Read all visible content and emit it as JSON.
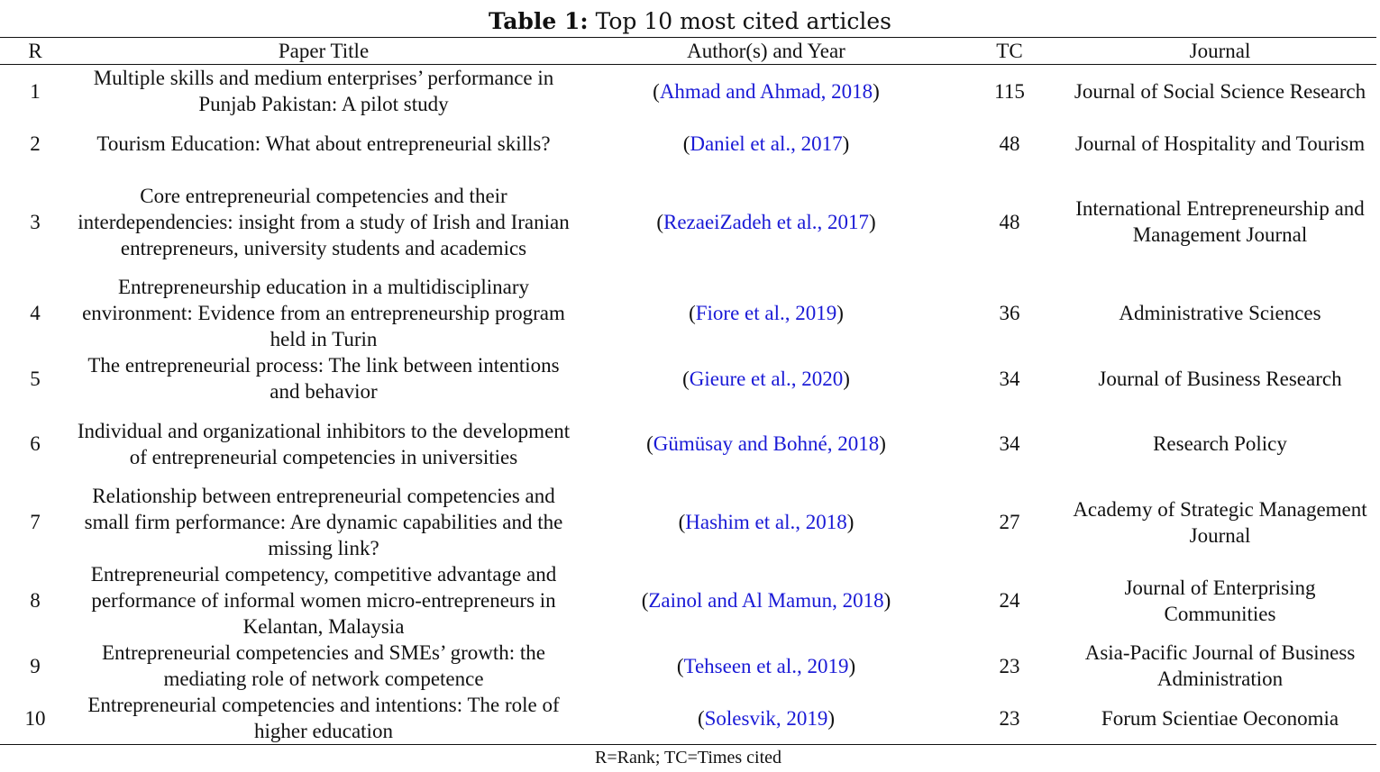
{
  "caption": {
    "label": "Table 1:",
    "text": "Top 10 most cited articles"
  },
  "headers": {
    "rank": "R",
    "title": "Paper Title",
    "authors": "Author(s) and Year",
    "tc": "TC",
    "journal": "Journal"
  },
  "rows": [
    {
      "rank": "1",
      "title": "Multiple skills and medium enterprises’ performance in Punjab Pakistan: A pilot study",
      "authors": "Ahmad and Ahmad, 2018",
      "tc": "115",
      "journal": "Journal of Social Science Research"
    },
    {
      "rank": "2",
      "title": "Tourism Education: What about entrepreneurial skills?",
      "authors": "Daniel et al., 2017",
      "tc": "48",
      "journal": "Journal of Hospitality and Tourism"
    },
    {
      "rank": "3",
      "title": "Core entrepreneurial competencies and their interdependencies: insight from a study of Irish and Iranian entrepreneurs, university students and academics",
      "authors": "RezaeiZadeh et al., 2017",
      "tc": "48",
      "journal": "International Entrepreneurship and Management Journal"
    },
    {
      "rank": "4",
      "title": "Entrepreneurship education in a multidisciplinary environment: Evidence from an entrepreneurship program held in Turin",
      "authors": "Fiore et al., 2019",
      "tc": "36",
      "journal": "Administrative Sciences"
    },
    {
      "rank": "5",
      "title": "The entrepreneurial process: The link between intentions and behavior",
      "authors": "Gieure et al., 2020",
      "tc": "34",
      "journal": "Journal of Business Research"
    },
    {
      "rank": "6",
      "title": "Individual and organizational inhibitors to the development of entrepreneurial competencies in universities",
      "authors": "Gümüsay and Bohné, 2018",
      "tc": "34",
      "journal": "Research Policy"
    },
    {
      "rank": "7",
      "title": "Relationship between entrepreneurial competencies and small firm performance: Are dynamic capabilities and the missing link?",
      "authors": "Hashim et al., 2018",
      "tc": "27",
      "journal": "Academy of Strategic Management Journal"
    },
    {
      "rank": "8",
      "title": "Entrepreneurial competency, competitive advantage and performance of informal women micro-entrepreneurs in Kelantan, Malaysia",
      "authors": "Zainol and Al Mamun, 2018",
      "tc": "24",
      "journal": "Journal of Enterprising Communities"
    },
    {
      "rank": "9",
      "title": "Entrepreneurial competencies and SMEs’ growth: the mediating role of network competence",
      "authors": "Tehseen et al., 2019",
      "tc": "23",
      "journal": "Asia-Pacific Journal of Business Administration"
    },
    {
      "rank": "10",
      "title": "Entrepreneurial competencies and intentions: The role of higher education",
      "authors": "Solesvik, 2019",
      "tc": "23",
      "journal": "Forum Scientiae Oeconomia"
    }
  ],
  "footnote": "R=Rank; TC=Times cited",
  "colors": {
    "citation_link": "#1a1ad6",
    "text": "#111111"
  }
}
